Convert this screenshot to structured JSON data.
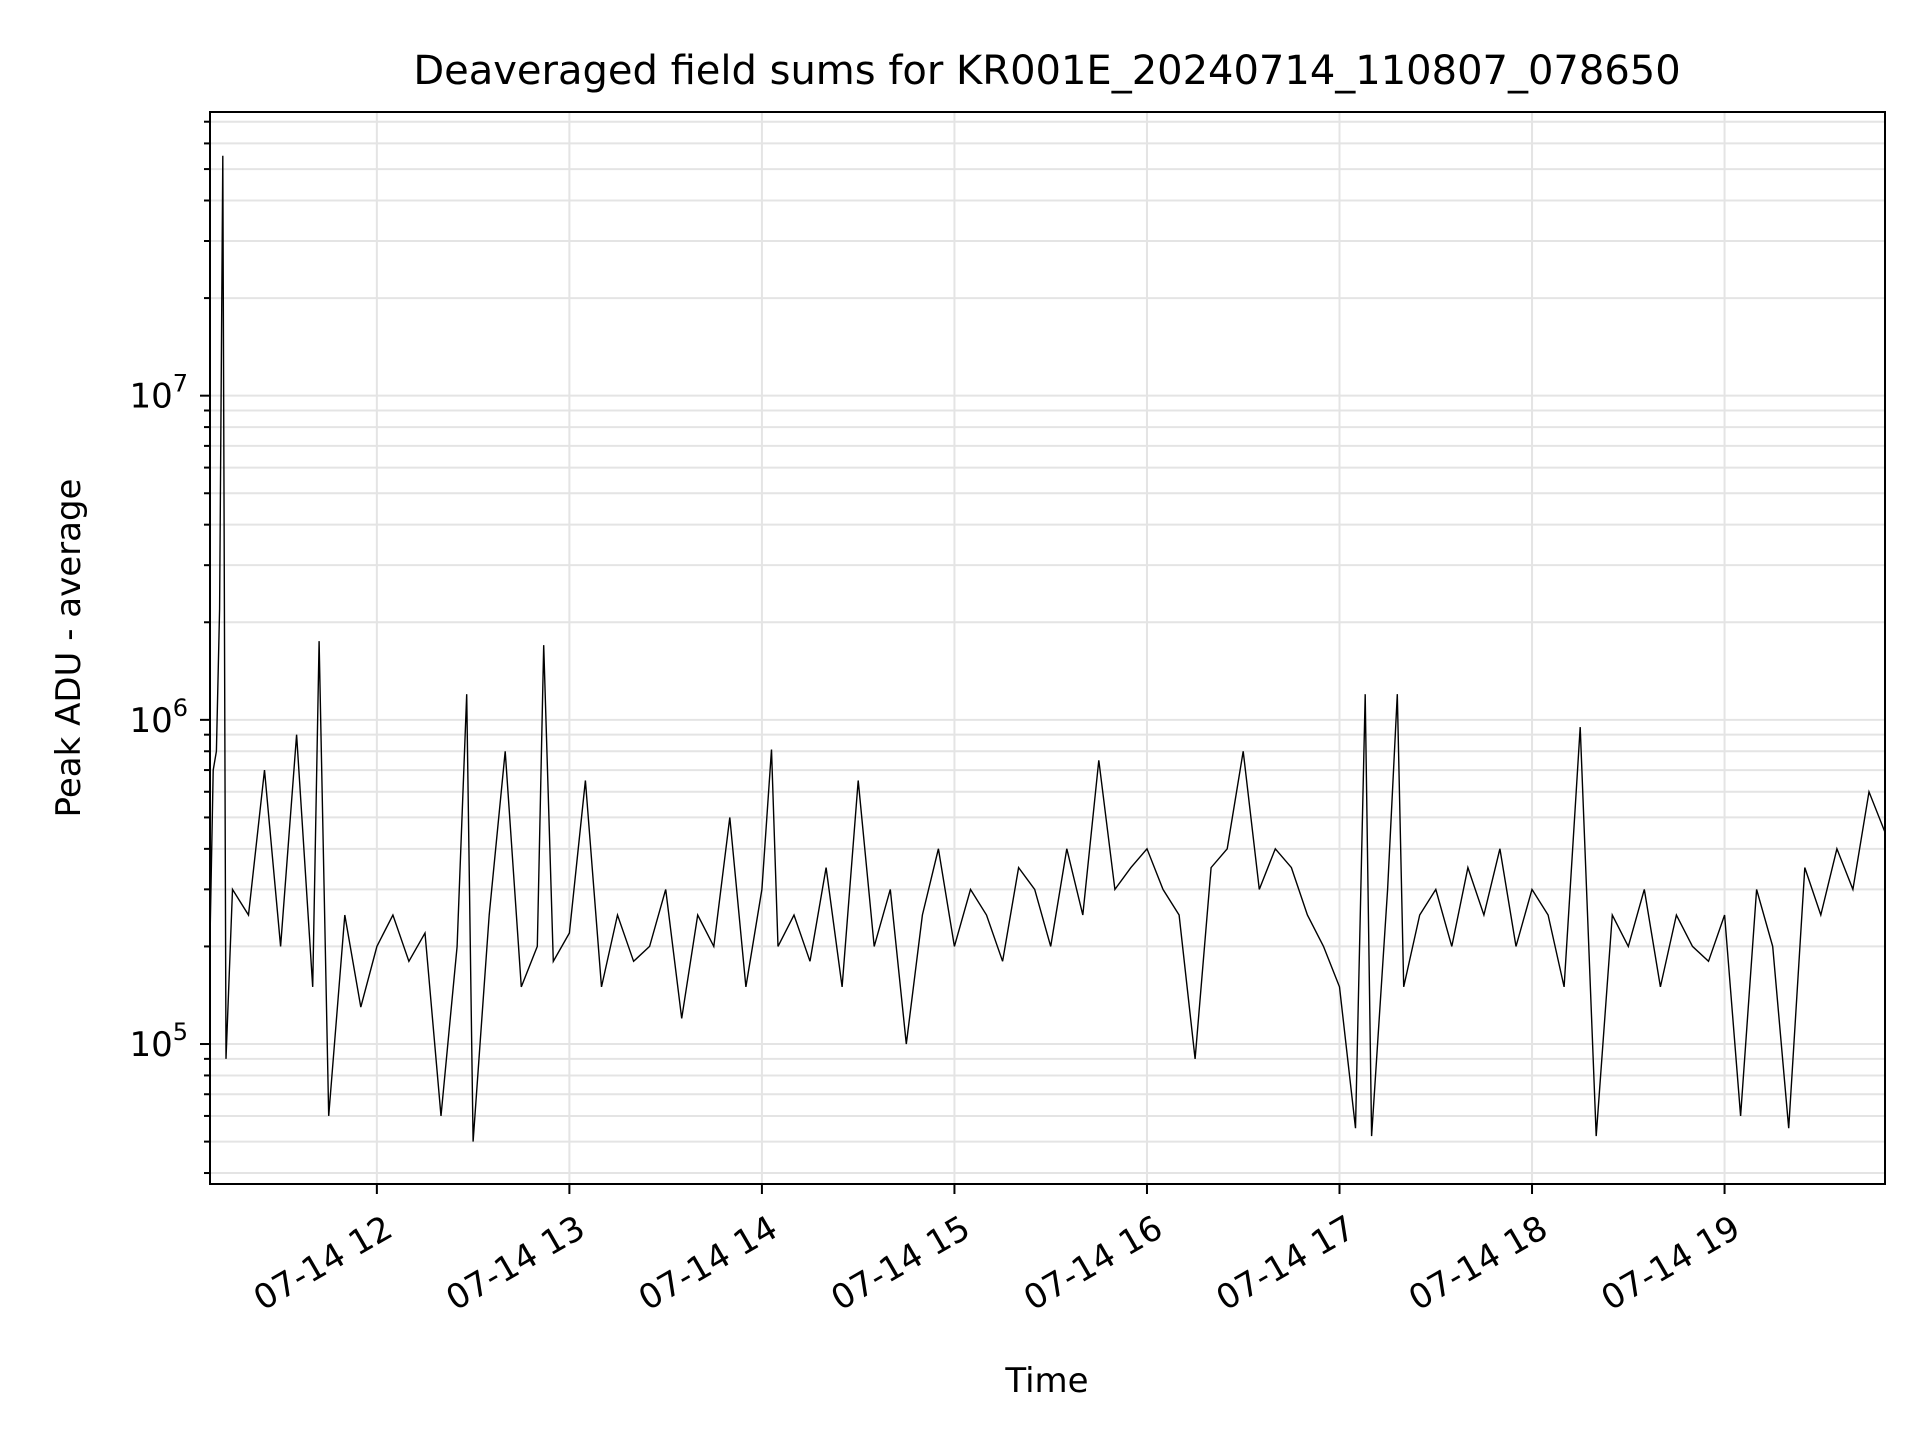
{
  "chart_data": {
    "type": "line",
    "title": "Deaveraged field sums for KR001E_20240714_110807_078650",
    "xlabel": "Time",
    "ylabel": "Peak ADU - average",
    "yscale": "log",
    "grid": true,
    "xlim": [
      "2024-07-14 11:08",
      "2024-07-14 19:50"
    ],
    "ylim": [
      37000,
      75000000
    ],
    "x_ticks": [
      "07-14 12",
      "07-14 13",
      "07-14 14",
      "07-14 15",
      "07-14 16",
      "07-14 17",
      "07-14 18",
      "07-14 19"
    ],
    "y_ticks": [
      {
        "base": "10",
        "exp": "5",
        "value": 100000
      },
      {
        "base": "10",
        "exp": "6",
        "value": 1000000
      },
      {
        "base": "10",
        "exp": "7",
        "value": 10000000
      }
    ],
    "line_color": "#000000",
    "series": [
      {
        "points": [
          [
            "2024-07-14 11:08",
            210000
          ],
          [
            "2024-07-14 11:09",
            700000
          ],
          [
            "2024-07-14 11:10",
            800000
          ],
          [
            "2024-07-14 11:11",
            2200000
          ],
          [
            "2024-07-14 11:12",
            55000000
          ],
          [
            "2024-07-14 11:13",
            90000
          ],
          [
            "2024-07-14 11:15",
            300000
          ],
          [
            "2024-07-14 11:20",
            250000
          ],
          [
            "2024-07-14 11:25",
            700000
          ],
          [
            "2024-07-14 11:30",
            200000
          ],
          [
            "2024-07-14 11:35",
            900000
          ],
          [
            "2024-07-14 11:40",
            150000
          ],
          [
            "2024-07-14 11:42",
            1750000
          ],
          [
            "2024-07-14 11:45",
            60000
          ],
          [
            "2024-07-14 11:50",
            250000
          ],
          [
            "2024-07-14 11:55",
            130000
          ],
          [
            "2024-07-14 12:00",
            200000
          ],
          [
            "2024-07-14 12:05",
            250000
          ],
          [
            "2024-07-14 12:10",
            180000
          ],
          [
            "2024-07-14 12:15",
            220000
          ],
          [
            "2024-07-14 12:20",
            60000
          ],
          [
            "2024-07-14 12:25",
            200000
          ],
          [
            "2024-07-14 12:28",
            1200000
          ],
          [
            "2024-07-14 12:30",
            50000
          ],
          [
            "2024-07-14 12:35",
            250000
          ],
          [
            "2024-07-14 12:40",
            800000
          ],
          [
            "2024-07-14 12:45",
            150000
          ],
          [
            "2024-07-14 12:50",
            200000
          ],
          [
            "2024-07-14 12:52",
            1700000
          ],
          [
            "2024-07-14 12:55",
            180000
          ],
          [
            "2024-07-14 13:00",
            220000
          ],
          [
            "2024-07-14 13:05",
            650000
          ],
          [
            "2024-07-14 13:10",
            150000
          ],
          [
            "2024-07-14 13:15",
            250000
          ],
          [
            "2024-07-14 13:20",
            180000
          ],
          [
            "2024-07-14 13:25",
            200000
          ],
          [
            "2024-07-14 13:30",
            300000
          ],
          [
            "2024-07-14 13:35",
            120000
          ],
          [
            "2024-07-14 13:40",
            250000
          ],
          [
            "2024-07-14 13:45",
            200000
          ],
          [
            "2024-07-14 13:50",
            500000
          ],
          [
            "2024-07-14 13:55",
            150000
          ],
          [
            "2024-07-14 14:00",
            300000
          ],
          [
            "2024-07-14 14:03",
            810000
          ],
          [
            "2024-07-14 14:05",
            200000
          ],
          [
            "2024-07-14 14:10",
            250000
          ],
          [
            "2024-07-14 14:15",
            180000
          ],
          [
            "2024-07-14 14:20",
            350000
          ],
          [
            "2024-07-14 14:25",
            150000
          ],
          [
            "2024-07-14 14:30",
            650000
          ],
          [
            "2024-07-14 14:35",
            200000
          ],
          [
            "2024-07-14 14:40",
            300000
          ],
          [
            "2024-07-14 14:45",
            100000
          ],
          [
            "2024-07-14 14:50",
            250000
          ],
          [
            "2024-07-14 14:55",
            400000
          ],
          [
            "2024-07-14 15:00",
            200000
          ],
          [
            "2024-07-14 15:05",
            300000
          ],
          [
            "2024-07-14 15:10",
            250000
          ],
          [
            "2024-07-14 15:15",
            180000
          ],
          [
            "2024-07-14 15:20",
            350000
          ],
          [
            "2024-07-14 15:25",
            300000
          ],
          [
            "2024-07-14 15:30",
            200000
          ],
          [
            "2024-07-14 15:35",
            400000
          ],
          [
            "2024-07-14 15:40",
            250000
          ],
          [
            "2024-07-14 15:45",
            750000
          ],
          [
            "2024-07-14 15:50",
            300000
          ],
          [
            "2024-07-14 15:55",
            350000
          ],
          [
            "2024-07-14 16:00",
            400000
          ],
          [
            "2024-07-14 16:05",
            300000
          ],
          [
            "2024-07-14 16:10",
            250000
          ],
          [
            "2024-07-14 16:15",
            90000
          ],
          [
            "2024-07-14 16:20",
            350000
          ],
          [
            "2024-07-14 16:25",
            400000
          ],
          [
            "2024-07-14 16:30",
            800000
          ],
          [
            "2024-07-14 16:35",
            300000
          ],
          [
            "2024-07-14 16:40",
            400000
          ],
          [
            "2024-07-14 16:45",
            350000
          ],
          [
            "2024-07-14 16:50",
            250000
          ],
          [
            "2024-07-14 16:55",
            200000
          ],
          [
            "2024-07-14 17:00",
            150000
          ],
          [
            "2024-07-14 17:05",
            55000
          ],
          [
            "2024-07-14 17:08",
            1200000
          ],
          [
            "2024-07-14 17:10",
            52000
          ],
          [
            "2024-07-14 17:15",
            300000
          ],
          [
            "2024-07-14 17:18",
            1200000
          ],
          [
            "2024-07-14 17:20",
            150000
          ],
          [
            "2024-07-14 17:25",
            250000
          ],
          [
            "2024-07-14 17:30",
            300000
          ],
          [
            "2024-07-14 17:35",
            200000
          ],
          [
            "2024-07-14 17:40",
            350000
          ],
          [
            "2024-07-14 17:45",
            250000
          ],
          [
            "2024-07-14 17:50",
            400000
          ],
          [
            "2024-07-14 17:55",
            200000
          ],
          [
            "2024-07-14 18:00",
            300000
          ],
          [
            "2024-07-14 18:05",
            250000
          ],
          [
            "2024-07-14 18:10",
            150000
          ],
          [
            "2024-07-14 18:15",
            950000
          ],
          [
            "2024-07-14 18:20",
            52000
          ],
          [
            "2024-07-14 18:25",
            250000
          ],
          [
            "2024-07-14 18:30",
            200000
          ],
          [
            "2024-07-14 18:35",
            300000
          ],
          [
            "2024-07-14 18:40",
            150000
          ],
          [
            "2024-07-14 18:45",
            250000
          ],
          [
            "2024-07-14 18:50",
            200000
          ],
          [
            "2024-07-14 18:55",
            180000
          ],
          [
            "2024-07-14 19:00",
            250000
          ],
          [
            "2024-07-14 19:05",
            60000
          ],
          [
            "2024-07-14 19:10",
            300000
          ],
          [
            "2024-07-14 19:15",
            200000
          ],
          [
            "2024-07-14 19:20",
            55000
          ],
          [
            "2024-07-14 19:25",
            350000
          ],
          [
            "2024-07-14 19:30",
            250000
          ],
          [
            "2024-07-14 19:35",
            400000
          ],
          [
            "2024-07-14 19:40",
            300000
          ],
          [
            "2024-07-14 19:45",
            600000
          ],
          [
            "2024-07-14 19:50",
            450000
          ]
        ]
      }
    ]
  }
}
